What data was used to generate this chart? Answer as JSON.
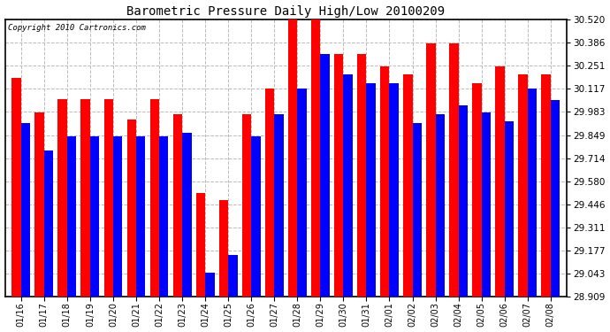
{
  "title": "Barometric Pressure Daily High/Low 20100209",
  "copyright_text": "Copyright 2010 Cartronics.com",
  "dates": [
    "01/16",
    "01/17",
    "01/18",
    "01/19",
    "01/20",
    "01/21",
    "01/22",
    "01/23",
    "01/24",
    "01/25",
    "01/26",
    "01/27",
    "01/28",
    "01/29",
    "01/30",
    "01/31",
    "02/01",
    "02/02",
    "02/03",
    "02/04",
    "02/05",
    "02/06",
    "02/07",
    "02/08"
  ],
  "highs": [
    30.18,
    29.98,
    30.06,
    30.06,
    30.06,
    29.94,
    30.06,
    29.97,
    29.51,
    29.47,
    29.97,
    30.12,
    30.52,
    30.52,
    30.32,
    30.32,
    30.25,
    30.2,
    30.38,
    30.38,
    30.15,
    30.25,
    30.2,
    30.2
  ],
  "lows": [
    29.92,
    29.76,
    29.84,
    29.84,
    29.84,
    29.84,
    29.84,
    29.86,
    29.05,
    29.15,
    29.84,
    29.97,
    30.12,
    30.32,
    30.2,
    30.15,
    30.15,
    29.92,
    29.97,
    30.02,
    29.98,
    29.93,
    30.12,
    30.05
  ],
  "high_color": "#ff0000",
  "low_color": "#0000ff",
  "bg_color": "#ffffff",
  "plot_bg_color": "#ffffff",
  "grid_color": "#bbbbbb",
  "ymin": 28.909,
  "ymax": 30.52,
  "yticks": [
    28.909,
    29.043,
    29.177,
    29.311,
    29.446,
    29.58,
    29.714,
    29.849,
    29.983,
    30.117,
    30.251,
    30.386,
    30.52
  ],
  "bar_width": 0.4
}
